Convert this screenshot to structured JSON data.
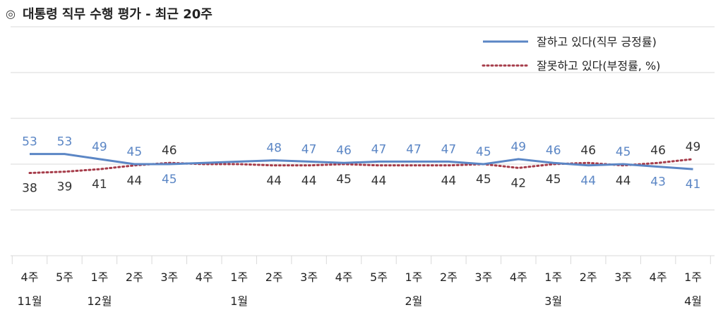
{
  "title": "대통령 직무 수행 평가 - 최근 20주",
  "icon": "double-circle-icon",
  "colors": {
    "approve": "#5B86C5",
    "disapprove": "#A63C4A",
    "grid": "#d9d9d9"
  },
  "chart_data": {
    "type": "line",
    "title": "대통령 직무 수행 평가 - 최근 20주",
    "categories": [
      "4주",
      "5주",
      "1주",
      "2주",
      "3주",
      "4주",
      "1주",
      "2주",
      "3주",
      "4주",
      "5주",
      "1주",
      "2주",
      "3주",
      "4주",
      "1주",
      "2주",
      "3주",
      "4주",
      "1주"
    ],
    "month_labels": [
      "11월",
      "",
      "12월",
      "",
      "",
      "",
      "1월",
      "",
      "",
      "",
      "",
      "2월",
      "",
      "",
      "",
      "3월",
      "",
      "",
      "",
      "4월"
    ],
    "ylim": [
      20,
      80
    ],
    "grid": true,
    "legend_position": "top-right",
    "series": [
      {
        "name": "잘하고 있다(직무 긍정률)",
        "style": "solid",
        "color": "#5B86C5",
        "values": [
          53,
          53,
          49,
          45,
          45,
          null,
          null,
          48,
          47,
          46,
          47,
          47,
          47,
          45,
          49,
          46,
          44,
          45,
          43,
          41
        ]
      },
      {
        "name": "잘못하고 있다(부정률, %)",
        "style": "dotted",
        "color": "#A63C4A",
        "values": [
          38,
          39,
          41,
          44,
          46,
          null,
          null,
          44,
          44,
          45,
          44,
          null,
          44,
          45,
          42,
          45,
          46,
          44,
          46,
          49
        ]
      }
    ],
    "line_values": {
      "approve": [
        53,
        53,
        49,
        45,
        45,
        46,
        47,
        48,
        47,
        46,
        47,
        47,
        47,
        45,
        49,
        46,
        44,
        45,
        43,
        41
      ],
      "disapprove": [
        38,
        39,
        41,
        44,
        46,
        45,
        45,
        44,
        44,
        45,
        44,
        44,
        44,
        45,
        42,
        45,
        46,
        44,
        46,
        49
      ]
    }
  }
}
